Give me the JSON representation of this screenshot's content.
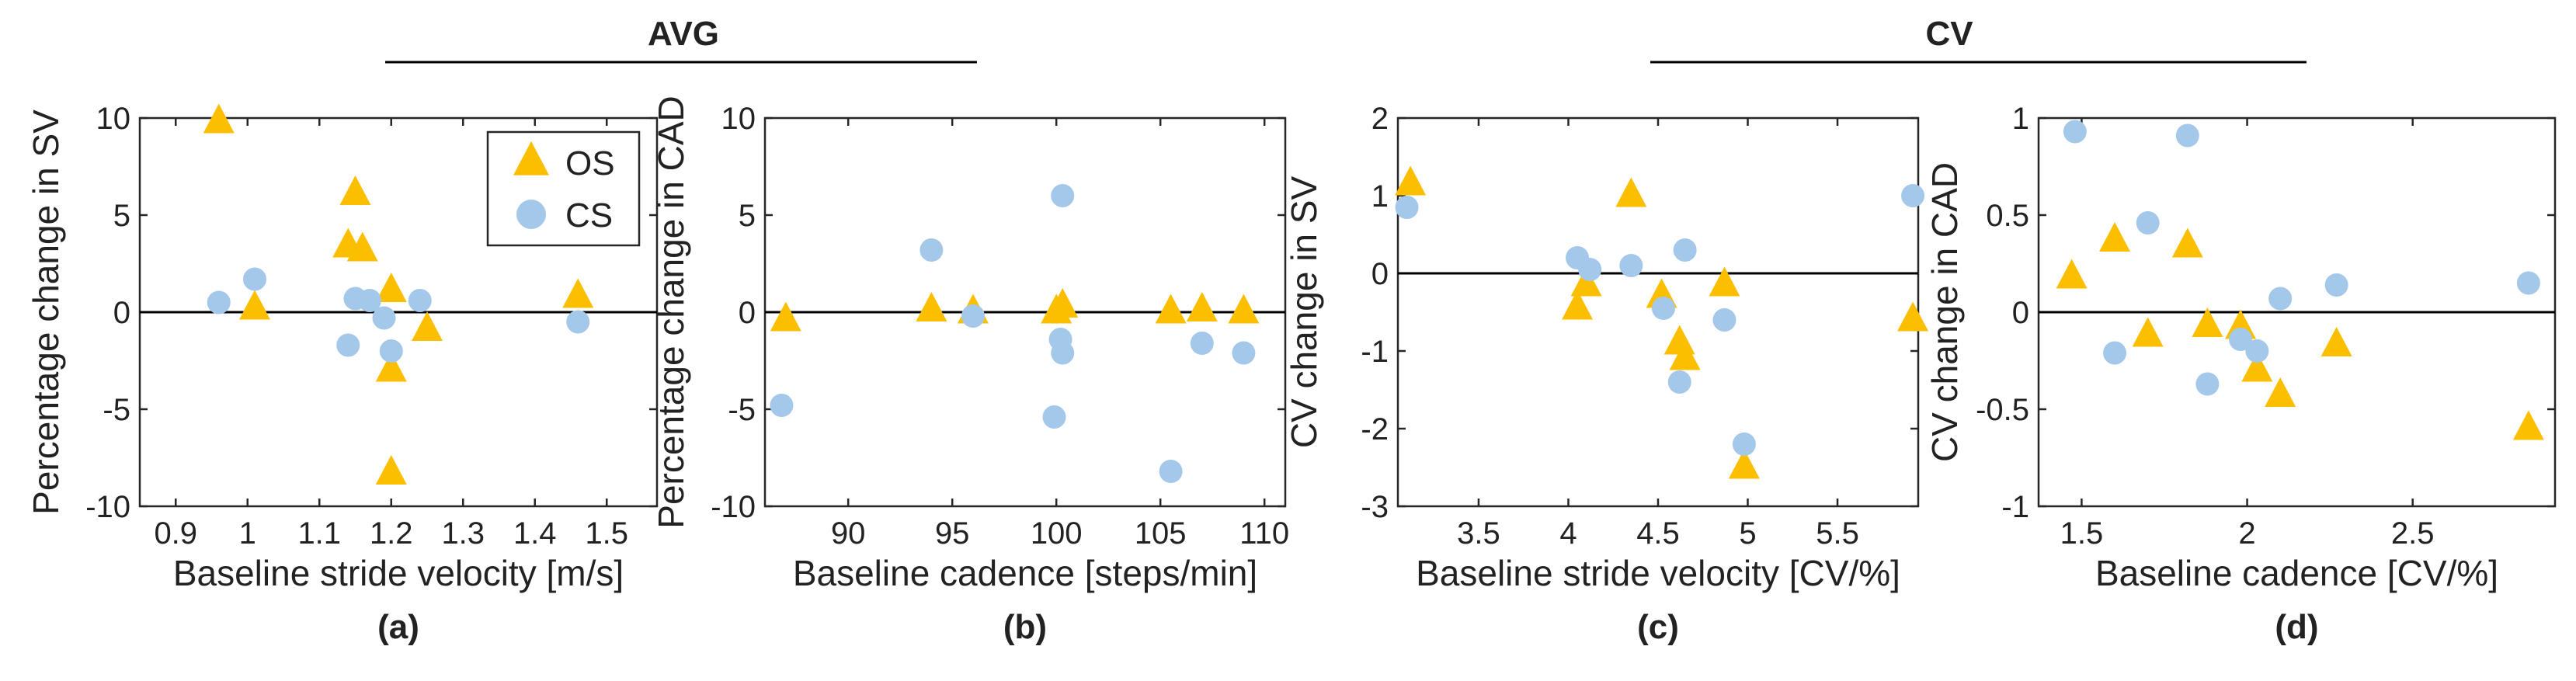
{
  "groups": [
    {
      "label": "AVG"
    },
    {
      "label": "CV"
    }
  ],
  "legend": {
    "items": [
      {
        "label": "OS",
        "marker": "triangle"
      },
      {
        "label": "CS",
        "marker": "circle"
      }
    ],
    "placement": "top-right of panel (a)"
  },
  "colors": {
    "OS": "#FBBF00",
    "CS": "#A4C8EA",
    "zero_line": "#000000"
  },
  "chart_data": [
    {
      "type": "scatter",
      "panel_label": "(a)",
      "xlabel": "Baseline stride velocity [m/s]",
      "ylabel": "Percentage change in SV",
      "xlim": [
        0.85,
        1.57
      ],
      "ylim": [
        -10,
        10
      ],
      "xticks": [
        0.9,
        1,
        1.1,
        1.2,
        1.3,
        1.4,
        1.5
      ],
      "xticklabels": [
        "0.9",
        "1",
        "1.1",
        "1.2",
        "1.3",
        "1.4",
        "1.5"
      ],
      "yticks": [
        -10,
        -5,
        0,
        5,
        10
      ],
      "yticklabels": [
        "-10",
        "-5",
        "0",
        "5",
        "10"
      ],
      "zero_line": 0,
      "series": [
        {
          "name": "OS",
          "marker": "triangle",
          "points": [
            [
              0.96,
              9.8
            ],
            [
              1.01,
              0.2
            ],
            [
              1.14,
              3.4
            ],
            [
              1.15,
              6.1
            ],
            [
              1.16,
              3.2
            ],
            [
              1.2,
              1.1
            ],
            [
              1.2,
              -3.0
            ],
            [
              1.2,
              -8.3
            ],
            [
              1.25,
              -0.9
            ],
            [
              1.46,
              0.8
            ]
          ]
        },
        {
          "name": "CS",
          "marker": "circle",
          "points": [
            [
              0.96,
              0.5
            ],
            [
              1.01,
              1.7
            ],
            [
              1.14,
              -1.7
            ],
            [
              1.15,
              0.7
            ],
            [
              1.17,
              0.6
            ],
            [
              1.19,
              -0.3
            ],
            [
              1.2,
              -2.0
            ],
            [
              1.24,
              0.6
            ],
            [
              1.46,
              -0.5
            ]
          ]
        }
      ]
    },
    {
      "type": "scatter",
      "panel_label": "(b)",
      "xlabel": "Baseline cadence [steps/min]",
      "ylabel": "Percentage change in CAD",
      "xlim": [
        86,
        111
      ],
      "ylim": [
        -10,
        10
      ],
      "xticks": [
        90,
        95,
        100,
        105,
        110
      ],
      "xticklabels": [
        "90",
        "95",
        "100",
        "105",
        "110"
      ],
      "yticks": [
        -10,
        -5,
        0,
        5,
        10
      ],
      "yticklabels": [
        "-10",
        "-5",
        "0",
        "5",
        "10"
      ],
      "zero_line": 0,
      "series": [
        {
          "name": "OS",
          "marker": "triangle",
          "points": [
            [
              87,
              -0.4
            ],
            [
              94,
              0.1
            ],
            [
              96,
              0
            ],
            [
              100,
              0
            ],
            [
              100.3,
              0.3
            ],
            [
              105.5,
              0
            ],
            [
              107,
              0.1
            ],
            [
              109,
              0
            ]
          ]
        },
        {
          "name": "CS",
          "marker": "circle",
          "points": [
            [
              86.8,
              -4.8
            ],
            [
              94,
              3.2
            ],
            [
              96,
              -0.2
            ],
            [
              99.9,
              -5.4
            ],
            [
              100.2,
              -1.4
            ],
            [
              100.3,
              -2.1
            ],
            [
              100.3,
              6.0
            ],
            [
              105.5,
              -8.2
            ],
            [
              107,
              -1.6
            ],
            [
              109,
              -2.1
            ]
          ]
        }
      ]
    },
    {
      "type": "scatter",
      "panel_label": "(c)",
      "xlabel": "Baseline stride velocity [CV/%]",
      "ylabel": "CV change in SV",
      "xlim": [
        3.05,
        5.95
      ],
      "ylim": [
        -3,
        2
      ],
      "xticks": [
        3.5,
        4,
        4.5,
        5,
        5.5
      ],
      "xticklabels": [
        "3.5",
        "4",
        "4.5",
        "5",
        "5.5"
      ],
      "yticks": [
        -3,
        -2,
        -1,
        0,
        1,
        2
      ],
      "yticklabels": [
        "-3",
        "-2",
        "-1",
        "0",
        "1",
        "2"
      ],
      "zero_line": 0,
      "series": [
        {
          "name": "OS",
          "marker": "triangle",
          "points": [
            [
              3.12,
              1.15
            ],
            [
              4.05,
              -0.45
            ],
            [
              4.1,
              -0.15
            ],
            [
              4.35,
              1.0
            ],
            [
              4.52,
              -0.3
            ],
            [
              4.62,
              -0.9
            ],
            [
              4.65,
              -1.1
            ],
            [
              4.87,
              -0.15
            ],
            [
              4.98,
              -2.5
            ],
            [
              5.92,
              -0.6
            ]
          ]
        },
        {
          "name": "CS",
          "marker": "circle",
          "points": [
            [
              3.1,
              0.85
            ],
            [
              4.05,
              0.2
            ],
            [
              4.12,
              0.05
            ],
            [
              4.35,
              0.1
            ],
            [
              4.53,
              -0.45
            ],
            [
              4.62,
              -1.4
            ],
            [
              4.65,
              0.3
            ],
            [
              4.87,
              -0.6
            ],
            [
              4.98,
              -2.2
            ],
            [
              5.92,
              1.0
            ]
          ]
        }
      ]
    },
    {
      "type": "scatter",
      "panel_label": "(d)",
      "xlabel": "Baseline cadence [CV/%]",
      "ylabel": "CV change in CAD",
      "xlim": [
        1.37,
        2.93
      ],
      "ylim": [
        -1,
        1
      ],
      "xticks": [
        1.5,
        2,
        2.5
      ],
      "xticklabels": [
        "1.5",
        "2",
        "2.5"
      ],
      "yticks": [
        -1,
        -0.5,
        0,
        0.5,
        1
      ],
      "yticklabels": [
        "-1",
        "-0.5",
        "0",
        "0.5",
        "1"
      ],
      "zero_line": 0,
      "series": [
        {
          "name": "OS",
          "marker": "triangle",
          "points": [
            [
              1.47,
              0.18
            ],
            [
              1.6,
              0.37
            ],
            [
              1.7,
              -0.12
            ],
            [
              1.82,
              0.34
            ],
            [
              1.88,
              -0.07
            ],
            [
              1.98,
              -0.08
            ],
            [
              2.03,
              -0.3
            ],
            [
              2.1,
              -0.43
            ],
            [
              2.27,
              -0.17
            ],
            [
              2.85,
              -0.6
            ]
          ]
        },
        {
          "name": "CS",
          "marker": "circle",
          "points": [
            [
              1.48,
              0.93
            ],
            [
              1.6,
              -0.21
            ],
            [
              1.7,
              0.46
            ],
            [
              1.82,
              0.91
            ],
            [
              1.88,
              -0.37
            ],
            [
              1.98,
              -0.14
            ],
            [
              2.03,
              -0.2
            ],
            [
              2.1,
              0.07
            ],
            [
              2.27,
              0.14
            ],
            [
              2.85,
              0.15
            ]
          ]
        }
      ]
    }
  ]
}
